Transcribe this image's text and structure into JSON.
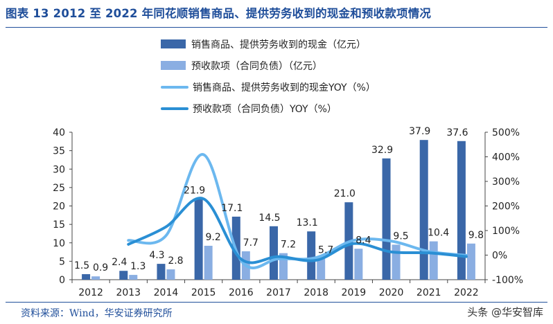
{
  "title": "图表 13 2012 至 2022 年同花顺销售商品、提供劳务收到的现金和预收款项情况",
  "source": "资料来源：Wind，华安证券研究所",
  "watermark": "头条 @华安智库",
  "colors": {
    "bar_dark": "#3a67a8",
    "bar_light": "#8aaee2",
    "line_light": "#6cb8ef",
    "line_dark": "#2a8fd4",
    "title": "#1f4e9a"
  },
  "chart_data": {
    "type": "bar+line",
    "categories": [
      "2012",
      "2013",
      "2014",
      "2015",
      "2016",
      "2017",
      "2018",
      "2019",
      "2020",
      "2021",
      "2022"
    ],
    "y_left": {
      "ticks": [
        0,
        5,
        10,
        15,
        20,
        25,
        30,
        35,
        40
      ],
      "ylim": [
        0,
        40
      ]
    },
    "y_right": {
      "ticks": [
        "-100%",
        "0%",
        "100%",
        "200%",
        "300%",
        "400%",
        "500%"
      ],
      "ylim": [
        -100,
        500
      ]
    },
    "series": [
      {
        "name": "销售商品、提供劳务收到的现金（亿元）",
        "type": "bar",
        "axis": "left",
        "values": [
          1.5,
          2.4,
          4.3,
          21.9,
          17.1,
          14.5,
          13.1,
          21.0,
          32.9,
          37.9,
          37.6
        ],
        "labels": [
          "1.5",
          "2.4",
          "4.3",
          "21.9",
          "17.1",
          "14.5",
          "13.1",
          "21.0",
          "32.9",
          "37.9",
          "37.6"
        ]
      },
      {
        "name": "预收款项（合同负债）（亿元）",
        "type": "bar",
        "axis": "left",
        "values": [
          0.9,
          1.3,
          2.8,
          9.2,
          7.7,
          7.2,
          5.7,
          8.4,
          9.5,
          10.4,
          9.8
        ],
        "labels": [
          "0.9",
          "1.3",
          "2.8",
          "9.2",
          "7.7",
          "7.2",
          "5.7",
          "8.4",
          "9.5",
          "10.4",
          "9.8"
        ]
      },
      {
        "name": "销售商品、提供劳务收到的现金YOY（%）",
        "type": "line",
        "axis": "right",
        "values": [
          null,
          60,
          79,
          409,
          -22,
          -15,
          -10,
          60,
          57,
          15,
          -1
        ]
      },
      {
        "name": "预收款项（合同负债）YOY（%）",
        "type": "line",
        "axis": "right",
        "values": [
          null,
          44,
          115,
          229,
          -16,
          -6,
          -21,
          47,
          13,
          9,
          -6
        ]
      }
    ]
  }
}
